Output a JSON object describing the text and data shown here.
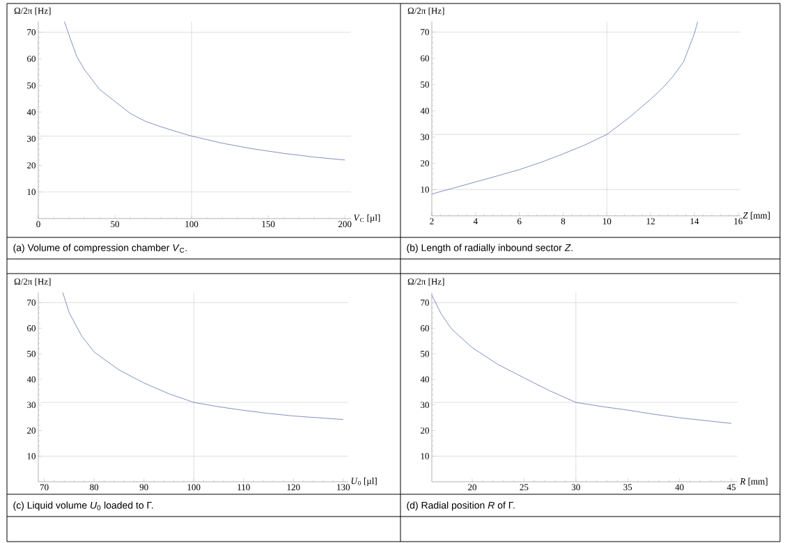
{
  "chart_data": [
    {
      "type": "line",
      "xlabel": "*V*$_{C}$ [µl]",
      "ylabel": "Ω/2π [Hz]",
      "annotations": [
        "(a) Volume of compression chamber *V*$_{C}$."
      ],
      "color": "#5f75ad",
      "x": [
        17,
        20,
        25,
        30,
        40,
        50,
        60,
        70,
        80,
        90,
        100,
        120,
        140,
        160,
        180,
        200
      ],
      "values": [
        74,
        69,
        61,
        56,
        48.5,
        44,
        39.5,
        36.5,
        34.5,
        32.7,
        31,
        28.3,
        26.2,
        24.5,
        23.1,
        22
      ],
      "xlim": [
        0,
        204
      ],
      "ylim": [
        0,
        74
      ],
      "xticks": [
        0,
        50,
        100,
        150,
        200
      ],
      "yticks": [
        10,
        20,
        30,
        40,
        50,
        60,
        70
      ],
      "ref_lines": [
        {
          "axis": "x",
          "value": 100,
          "color": "#c8c8c8"
        },
        {
          "axis": "y",
          "value": 10,
          "color": "#c8c8c8"
        },
        {
          "axis": "y",
          "value": 31,
          "color": "#c8c8c8"
        },
        {
          "axis": "y",
          "value": 70,
          "color": "#c8c8c8"
        }
      ]
    },
    {
      "type": "line",
      "xlabel": "*Z* [mm]",
      "ylabel": "Ω/2π [Hz]",
      "annotations": [
        "(b) Length of radially inbound sector *Z*."
      ],
      "color": "#5f75ad",
      "x": [
        2,
        3,
        4,
        5,
        6,
        7,
        8,
        9,
        10,
        11,
        12,
        12.5,
        13,
        13.5,
        14,
        14.15
      ],
      "values": [
        8.3,
        10.6,
        12.9,
        15.2,
        17.6,
        20.4,
        23.6,
        27,
        31,
        37.3,
        44.4,
        48.3,
        52.9,
        58.6,
        69.4,
        74
      ],
      "xlim": [
        2,
        16.1
      ],
      "ylim": [
        0,
        74
      ],
      "xticks": [
        2,
        4,
        6,
        8,
        10,
        12,
        14,
        16
      ],
      "yticks": [
        10,
        20,
        30,
        40,
        50,
        60,
        70
      ],
      "ref_lines": [
        {
          "axis": "x",
          "value": 10,
          "color": "#c8c8c8"
        },
        {
          "axis": "y",
          "value": 10,
          "color": "#c8c8c8"
        },
        {
          "axis": "y",
          "value": 31,
          "color": "#c8c8c8"
        },
        {
          "axis": "y",
          "value": 70,
          "color": "#c8c8c8"
        }
      ]
    },
    {
      "type": "line",
      "xlabel": "*U*$_{0}$ [µl]",
      "ylabel": "Ω/2π [Hz]",
      "annotations": [
        "(c) Liquid volume *U*$_{0}$ loaded to Γ."
      ],
      "color": "#5f75ad",
      "x": [
        73.7,
        75,
        77.5,
        80,
        85,
        90,
        95,
        100,
        105,
        110,
        115,
        120,
        125,
        130
      ],
      "values": [
        74,
        66,
        57,
        50.7,
        43.7,
        38.6,
        34.4,
        31,
        29.3,
        27.9,
        26.7,
        25.7,
        25,
        24.3
      ],
      "xlim": [
        68.8,
        131
      ],
      "ylim": [
        0,
        74
      ],
      "xticks": [
        70,
        80,
        90,
        100,
        110,
        120,
        130
      ],
      "yticks": [
        10,
        20,
        30,
        40,
        50,
        60,
        70
      ],
      "ref_lines": [
        {
          "axis": "x",
          "value": 100,
          "color": "#c8c8c8"
        },
        {
          "axis": "y",
          "value": 10,
          "color": "#c8c8c8"
        },
        {
          "axis": "y",
          "value": 31,
          "color": "#c8c8c8"
        },
        {
          "axis": "y",
          "value": 70,
          "color": "#c8c8c8"
        }
      ]
    },
    {
      "type": "line",
      "xlabel": "*R* [mm]",
      "ylabel": "Ω/2π [Hz]",
      "annotations": [
        "(d) Radial position *R* of Γ."
      ],
      "color": "#5f75ad",
      "x": [
        16.1,
        17,
        18,
        20,
        22.5,
        25,
        27.5,
        30,
        32.5,
        35,
        37.5,
        40,
        42.5,
        45
      ],
      "values": [
        73,
        65.6,
        59.7,
        52.4,
        45.8,
        40.6,
        35.5,
        31,
        29.4,
        28,
        26.4,
        25,
        23.9,
        22.8
      ],
      "xlim": [
        16.1,
        45.6
      ],
      "ylim": [
        0,
        74
      ],
      "xticks": [
        20,
        25,
        30,
        35,
        40,
        45
      ],
      "yticks": [
        10,
        20,
        30,
        40,
        50,
        60,
        70
      ],
      "ref_lines": [
        {
          "axis": "x",
          "value": 30,
          "color": "#c8c8c8"
        },
        {
          "axis": "y",
          "value": 10,
          "color": "#c8c8c8"
        },
        {
          "axis": "y",
          "value": 31,
          "color": "#c8c8c8"
        },
        {
          "axis": "y",
          "value": 70,
          "color": "#c8c8c8"
        }
      ]
    }
  ]
}
